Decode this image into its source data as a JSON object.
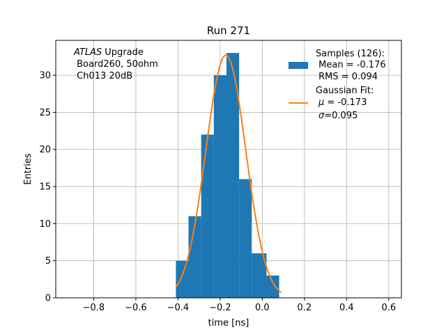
{
  "chart_data": {
    "type": "bar",
    "title": "Run 271",
    "xlabel": "time [ns]",
    "ylabel": "Entries",
    "xlim": [
      -0.98,
      0.66
    ],
    "ylim": [
      0,
      34.7
    ],
    "grid": true,
    "xticks": [
      -0.8,
      -0.6,
      -0.4,
      -0.2,
      0.0,
      0.2,
      0.4,
      0.6
    ],
    "xtick_labels": [
      "−0.8",
      "−0.6",
      "−0.4",
      "−0.2",
      "0.0",
      "0.2",
      "0.4",
      "0.6"
    ],
    "yticks": [
      0,
      5,
      10,
      15,
      20,
      25,
      30
    ],
    "ytick_labels": [
      "0",
      "5",
      "10",
      "15",
      "20",
      "25",
      "30"
    ],
    "bar_color": "#1f77b4",
    "fit_color": "#ff7f0e",
    "histogram": {
      "bin_edges": [
        -0.41,
        -0.35,
        -0.29,
        -0.23,
        -0.17,
        -0.11,
        -0.05,
        0.02,
        0.08
      ],
      "counts": [
        5,
        11,
        22,
        30,
        33,
        16,
        6,
        3
      ]
    },
    "gaussian_fit": {
      "mu": -0.173,
      "sigma": 0.095,
      "amplitude": 32.7,
      "x_range": [
        -0.41,
        0.09
      ]
    },
    "annotation": {
      "lines": [
        "Upgrade",
        "Board260, 50ohm",
        "Ch013 20dB"
      ],
      "italic_prefix": "ATLAS"
    },
    "legend": {
      "placement": "top-right",
      "samples": {
        "title": "Samples (126):",
        "mean": "Mean = -0.176",
        "rms": "RMS = 0.094"
      },
      "fit": {
        "title": "Gaussian Fit:",
        "mu_symbol": "μ",
        "mu_value": " = -0.173",
        "sigma_symbol": "σ",
        "sigma_value": "=0.095"
      }
    }
  }
}
